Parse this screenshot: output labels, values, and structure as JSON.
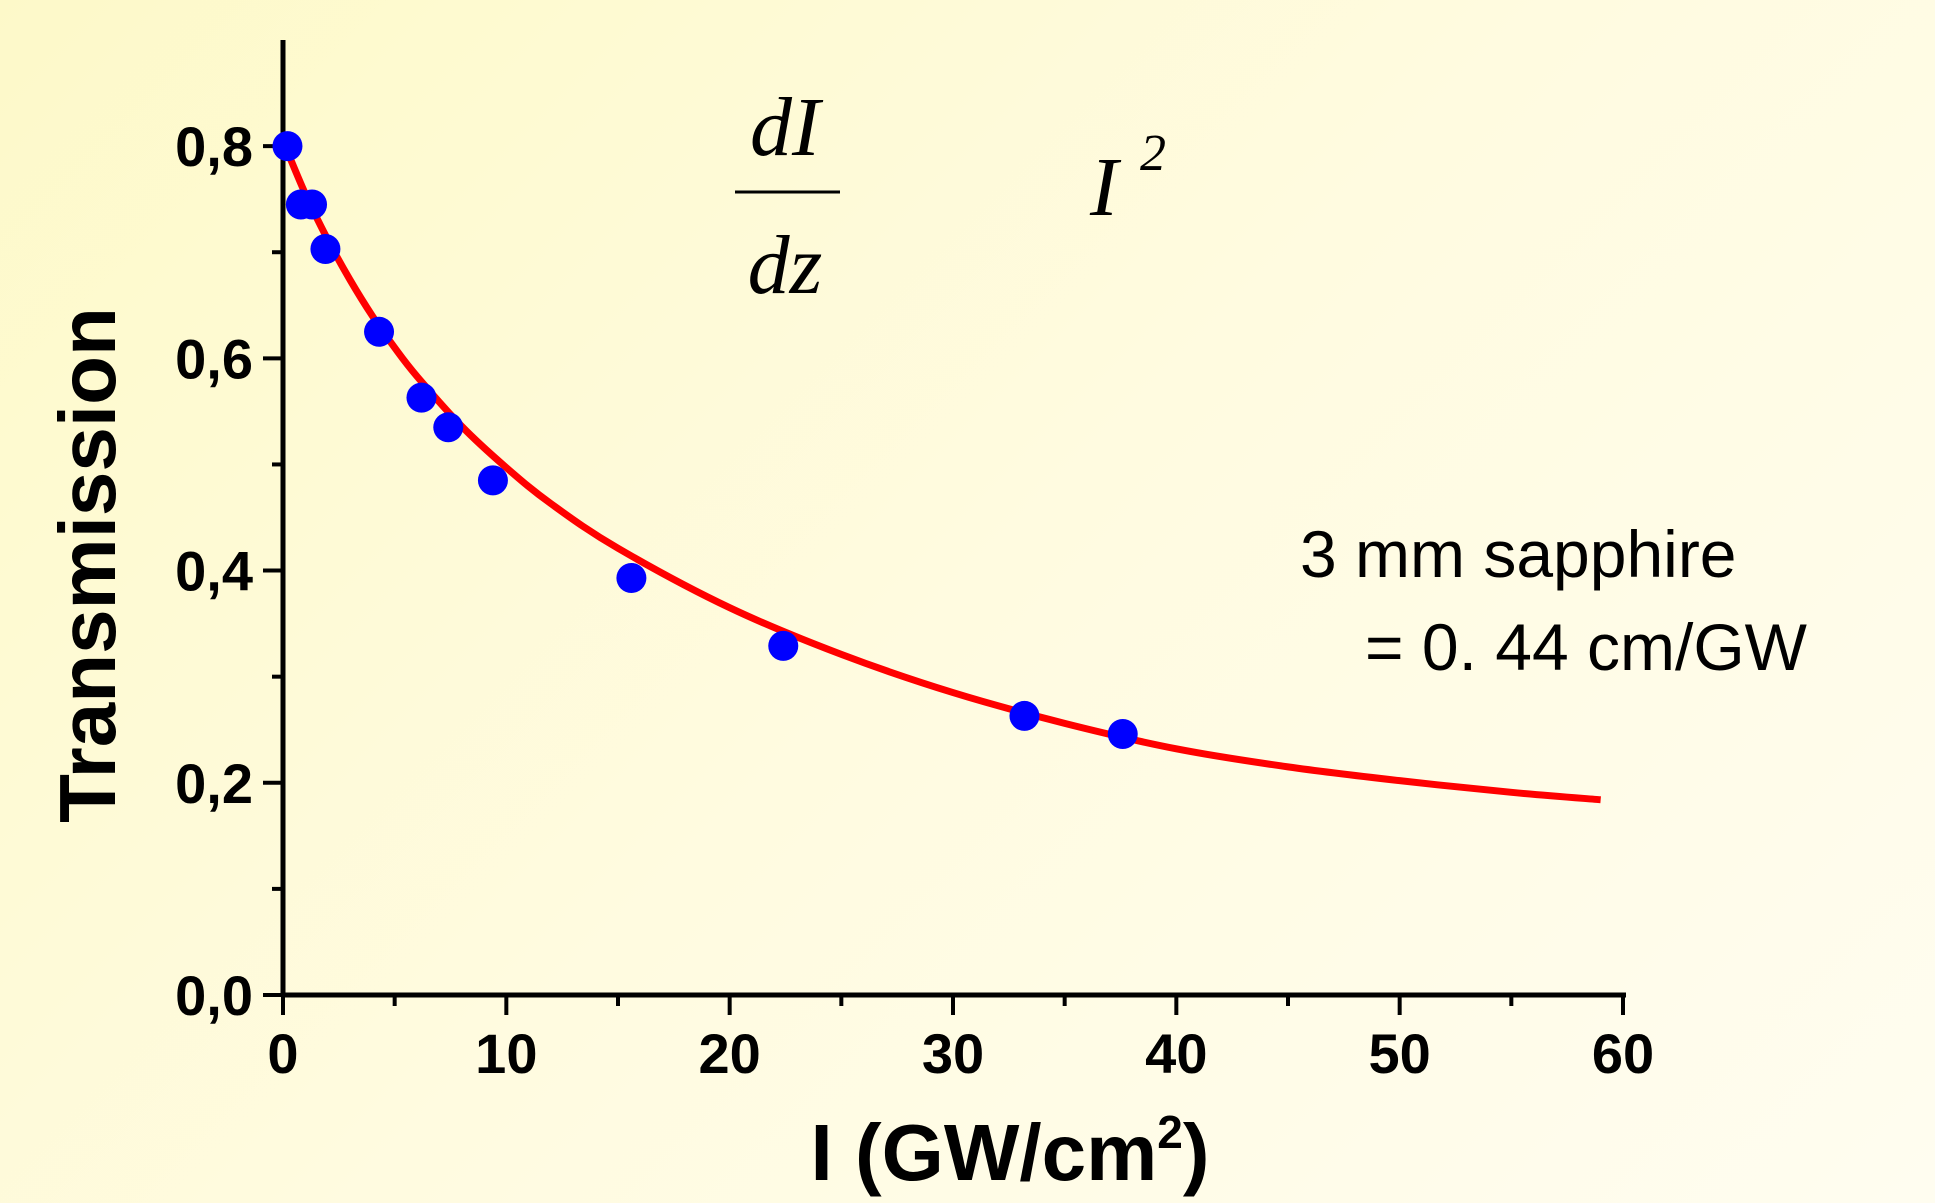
{
  "chart_data": {
    "type": "scatter",
    "xlabel_main": "I (GW/cm",
    "xlabel_sup": "2",
    "xlabel_end": ")",
    "ylabel": "Transmission",
    "xlim": [
      0,
      60
    ],
    "ylim": [
      0,
      0.9
    ],
    "x_ticks": [
      {
        "value": 0,
        "label": "0"
      },
      {
        "value": 10,
        "label": "10"
      },
      {
        "value": 20,
        "label": "20"
      },
      {
        "value": 30,
        "label": "30"
      },
      {
        "value": 40,
        "label": "40"
      },
      {
        "value": 50,
        "label": "50"
      },
      {
        "value": 60,
        "label": "60"
      }
    ],
    "y_ticks": [
      {
        "value": 0.0,
        "label": "0,0"
      },
      {
        "value": 0.2,
        "label": "0,2"
      },
      {
        "value": 0.4,
        "label": "0,4"
      },
      {
        "value": 0.6,
        "label": "0,6"
      },
      {
        "value": 0.8,
        "label": "0,8"
      }
    ],
    "x_minor_step": 5,
    "y_minor_step": 0.1,
    "grid": false,
    "series": [
      {
        "kind": "points",
        "color": "#0000ff",
        "x": [
          0.2,
          0.8,
          1.3,
          1.9,
          4.3,
          6.2,
          7.4,
          9.4,
          15.6,
          22.4,
          33.2,
          37.6
        ],
        "y": [
          0.8,
          0.745,
          0.745,
          0.703,
          0.625,
          0.563,
          0.535,
          0.485,
          0.393,
          0.329,
          0.263,
          0.246
        ]
      },
      {
        "kind": "fit-curve",
        "color": "#ff0000",
        "x": [
          0.0,
          1,
          2,
          3,
          4,
          5,
          6,
          8,
          10,
          12,
          15,
          20,
          25,
          30,
          35,
          40,
          45,
          50,
          55,
          59
        ],
        "y": [
          0.805,
          0.755,
          0.712,
          0.674,
          0.64,
          0.61,
          0.583,
          0.536,
          0.497,
          0.463,
          0.421,
          0.365,
          0.321,
          0.285,
          0.256,
          0.232,
          0.215,
          0.202,
          0.191,
          0.184
        ]
      }
    ],
    "annotations": {
      "math_numerator": "dI",
      "math_denominator": "dz",
      "math_term": "I",
      "math_exponent": "2",
      "sample_line": "3 mm sapphire",
      "beta_line": "= 0. 44 cm/GW"
    }
  }
}
